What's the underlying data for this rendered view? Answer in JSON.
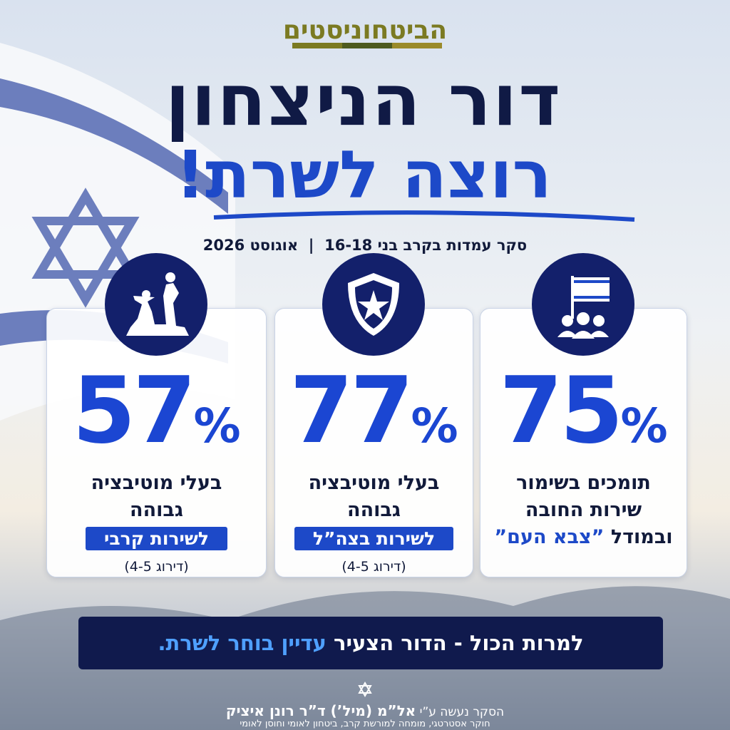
{
  "header": {
    "brand": "הביטחוניסטים",
    "title_line1": "דור הניצחון",
    "title_line2": "רוצה לשרת!",
    "subtitle_survey": "סקר עמדות בקרב בני 16-18",
    "subtitle_date": "אוגוסט 2026"
  },
  "cards": [
    {
      "number": "75",
      "symbol": "%",
      "line1": "תומכים בשימור",
      "line2": "שירות החובה",
      "line3": "ובמודל",
      "highlight": "”צבא העם”"
    },
    {
      "number": "77",
      "symbol": "%",
      "line1": "בעלי מוטיבציה",
      "line2": "גבוהה",
      "badge": "לשירות בצה”ל",
      "note": "(דירוג 4-5)"
    },
    {
      "number": "57",
      "symbol": "%",
      "line1": "בעלי מוטיבציה",
      "line2": "גבוהה",
      "badge": "לשירות קרבי",
      "note": "(דירוג 4-5)"
    }
  ],
  "banner": {
    "text": "למרות הכול - הדור הצעיר",
    "highlight": "עדיין בוחר לשרת."
  },
  "credits": {
    "prefix": "הסקר נעשה ע”י",
    "author": "אל”מ (מיל’) ד”ר רונן איציק",
    "bio": "חוקר אסטרטגי, מומחה למורשת קרב, ביטחון לאומי וחוסן לאומי"
  }
}
